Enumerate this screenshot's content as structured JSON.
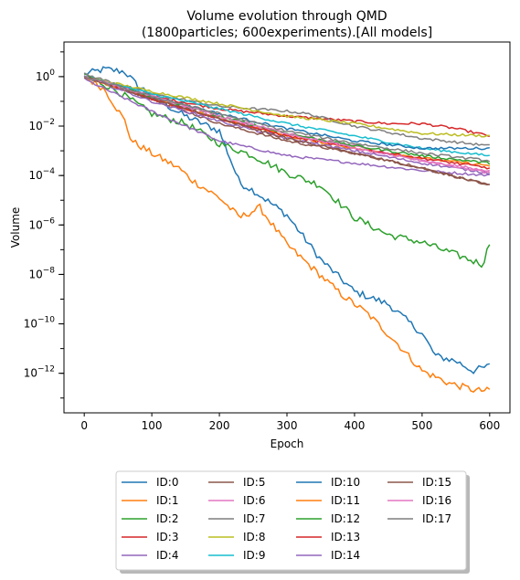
{
  "chart_data": {
    "type": "line",
    "title": [
      "Volume evolution through QMD",
      "(1800particles; 600experiments).[All models]"
    ],
    "xlabel": "Epoch",
    "ylabel": "Volume",
    "xlim": [
      -30,
      630
    ],
    "ylim_log10": [
      -13.6,
      1.4
    ],
    "y_scale": "log",
    "grid": false,
    "legend_placement": "bottom-center, outside",
    "x_ticks": [
      0,
      100,
      200,
      300,
      400,
      500,
      600
    ],
    "x_tick_labels": [
      "0",
      "100",
      "200",
      "300",
      "400",
      "500",
      "600"
    ],
    "y_ticks_log10": [
      0,
      -2,
      -4,
      -6,
      -8,
      -10,
      -12
    ],
    "y_tick_labels": [
      "10",
      "10",
      "10",
      "10",
      "10",
      "10",
      "10"
    ],
    "y_tick_exponents": [
      "0",
      "−2",
      "−4",
      "−6",
      "−8",
      "−10",
      "−12"
    ],
    "series": [
      {
        "name": "ID:0",
        "color": "#1f77b4",
        "x": [
          0,
          30,
          60,
          80,
          100,
          130,
          150,
          200,
          230,
          250,
          300,
          350,
          400,
          450,
          500,
          520,
          550,
          575,
          600
        ],
        "log10_y": [
          0.1,
          0.3,
          0.2,
          -0.4,
          -0.7,
          -1.3,
          -1.6,
          -2.2,
          -4.3,
          -4.6,
          -5.6,
          -7.4,
          -8.7,
          -9.2,
          -10.4,
          -11.3,
          -11.5,
          -11.9,
          -11.7
        ]
      },
      {
        "name": "ID:1",
        "color": "#ff7f0e",
        "x": [
          0,
          30,
          60,
          70,
          100,
          140,
          160,
          200,
          230,
          260,
          300,
          340,
          380,
          420,
          460,
          500,
          540,
          580,
          600
        ],
        "log10_y": [
          0.0,
          -0.5,
          -1.8,
          -2.6,
          -3.1,
          -3.7,
          -4.2,
          -4.9,
          -5.7,
          -5.3,
          -6.8,
          -7.8,
          -8.8,
          -9.6,
          -10.7,
          -11.9,
          -12.4,
          -12.7,
          -12.7
        ]
      },
      {
        "name": "ID:2",
        "color": "#2ca02c",
        "x": [
          0,
          50,
          100,
          150,
          200,
          250,
          300,
          350,
          400,
          450,
          500,
          550,
          590,
          600
        ],
        "log10_y": [
          0.1,
          -0.6,
          -1.5,
          -1.9,
          -2.7,
          -3.2,
          -3.9,
          -4.4,
          -5.7,
          -6.4,
          -6.7,
          -7.2,
          -7.6,
          -6.7
        ]
      },
      {
        "name": "ID:3",
        "color": "#d62728",
        "x": [
          0,
          100,
          200,
          300,
          400,
          450,
          500,
          550,
          600
        ],
        "log10_y": [
          0.0,
          -0.8,
          -1.3,
          -1.6,
          -1.8,
          -1.9,
          -1.9,
          -2.1,
          -2.4
        ]
      },
      {
        "name": "ID:4",
        "color": "#9467bd",
        "x": [
          0,
          100,
          200,
          300,
          400,
          500,
          600
        ],
        "log10_y": [
          -0.1,
          -1.4,
          -2.6,
          -3.2,
          -3.5,
          -3.8,
          -4.0
        ]
      },
      {
        "name": "ID:5",
        "color": "#8c564b",
        "x": [
          0,
          100,
          200,
          300,
          400,
          500,
          600
        ],
        "log10_y": [
          0.0,
          -0.9,
          -1.9,
          -2.6,
          -3.1,
          -3.7,
          -4.4
        ]
      },
      {
        "name": "ID:6",
        "color": "#e377c2",
        "x": [
          0,
          100,
          200,
          300,
          400,
          500,
          600
        ],
        "log10_y": [
          0.0,
          -0.8,
          -1.7,
          -2.3,
          -2.8,
          -3.4,
          -3.8
        ]
      },
      {
        "name": "ID:7",
        "color": "#7f7f7f",
        "x": [
          0,
          100,
          200,
          300,
          330,
          400,
          500,
          600
        ],
        "log10_y": [
          0.1,
          -0.7,
          -1.2,
          -1.4,
          -1.5,
          -2.0,
          -2.5,
          -2.8
        ]
      },
      {
        "name": "ID:8",
        "color": "#bcbd22",
        "x": [
          0,
          100,
          200,
          300,
          400,
          500,
          600
        ],
        "log10_y": [
          0.0,
          -0.6,
          -1.1,
          -1.6,
          -1.9,
          -2.3,
          -2.4
        ]
      },
      {
        "name": "ID:9",
        "color": "#17becf",
        "x": [
          0,
          100,
          200,
          300,
          400,
          500,
          600
        ],
        "log10_y": [
          0.0,
          -0.7,
          -1.3,
          -1.9,
          -2.4,
          -2.9,
          -3.2
        ]
      },
      {
        "name": "ID:10",
        "color": "#1f77b4",
        "x": [
          0,
          100,
          200,
          300,
          400,
          500,
          600
        ],
        "log10_y": [
          0.0,
          -0.8,
          -1.5,
          -2.1,
          -2.6,
          -2.9,
          -2.9
        ]
      },
      {
        "name": "ID:11",
        "color": "#ff7f0e",
        "x": [
          0,
          100,
          200,
          300,
          400,
          500,
          600
        ],
        "log10_y": [
          0.0,
          -0.9,
          -1.7,
          -2.4,
          -2.9,
          -3.3,
          -3.6
        ]
      },
      {
        "name": "ID:12",
        "color": "#2ca02c",
        "x": [
          0,
          100,
          200,
          300,
          400,
          500,
          600
        ],
        "log10_y": [
          0.0,
          -0.8,
          -1.6,
          -2.3,
          -2.8,
          -3.2,
          -3.5
        ]
      },
      {
        "name": "ID:13",
        "color": "#d62728",
        "x": [
          0,
          100,
          200,
          300,
          400,
          500,
          600
        ],
        "log10_y": [
          0.0,
          -0.9,
          -1.7,
          -2.4,
          -2.9,
          -3.3,
          -3.7
        ]
      },
      {
        "name": "ID:14",
        "color": "#9467bd",
        "x": [
          0,
          100,
          200,
          300,
          400,
          500,
          600
        ],
        "log10_y": [
          0.0,
          -1.0,
          -1.8,
          -2.5,
          -3.0,
          -3.5,
          -3.9
        ]
      },
      {
        "name": "ID:15",
        "color": "#8c564b",
        "x": [
          0,
          100,
          200,
          300,
          400,
          500,
          600
        ],
        "log10_y": [
          0.0,
          -0.9,
          -1.7,
          -2.5,
          -3.1,
          -3.7,
          -4.4
        ]
      },
      {
        "name": "ID:16",
        "color": "#e377c2",
        "x": [
          0,
          100,
          200,
          300,
          400,
          500,
          600
        ],
        "log10_y": [
          0.0,
          -0.8,
          -1.6,
          -2.3,
          -2.9,
          -3.4,
          -3.9
        ]
      },
      {
        "name": "ID:17",
        "color": "#7f7f7f",
        "x": [
          0,
          100,
          200,
          300,
          400,
          500,
          600
        ],
        "log10_y": [
          0.0,
          -0.8,
          -1.5,
          -2.2,
          -2.7,
          -3.1,
          -3.4
        ]
      }
    ]
  }
}
